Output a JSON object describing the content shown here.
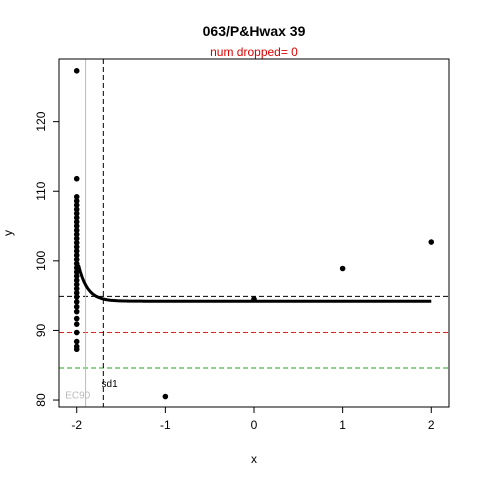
{
  "chart_data": {
    "type": "scatter",
    "title": "063/P&Hwax 39",
    "subtitle_prefix": "num dropped=",
    "subtitle_value": 0,
    "xlabel": "x",
    "ylabel": "y",
    "xlim": [
      -2.2,
      2.2
    ],
    "ylim": [
      79,
      129
    ],
    "xticks": [
      -2,
      -1,
      0,
      1,
      2
    ],
    "yticks": [
      80,
      90,
      100,
      110,
      120
    ],
    "points": [
      {
        "x": -2,
        "y": 127.3
      },
      {
        "x": -2,
        "y": 111.8
      },
      {
        "x": -2,
        "y": 109.2
      },
      {
        "x": -2,
        "y": 108.6
      },
      {
        "x": -2,
        "y": 108.0
      },
      {
        "x": -2,
        "y": 107.4
      },
      {
        "x": -2,
        "y": 106.8
      },
      {
        "x": -2,
        "y": 106.2
      },
      {
        "x": -2,
        "y": 105.6
      },
      {
        "x": -2,
        "y": 105.0
      },
      {
        "x": -2,
        "y": 104.4
      },
      {
        "x": -2,
        "y": 103.8
      },
      {
        "x": -2,
        "y": 103.2
      },
      {
        "x": -2,
        "y": 102.6
      },
      {
        "x": -2,
        "y": 102.0
      },
      {
        "x": -2,
        "y": 101.4
      },
      {
        "x": -2,
        "y": 100.8
      },
      {
        "x": -2,
        "y": 100.2
      },
      {
        "x": -2,
        "y": 99.6
      },
      {
        "x": -2,
        "y": 99.0
      },
      {
        "x": -2,
        "y": 98.4
      },
      {
        "x": -2,
        "y": 97.8
      },
      {
        "x": -2,
        "y": 97.2
      },
      {
        "x": -2,
        "y": 96.6
      },
      {
        "x": -2,
        "y": 96.0
      },
      {
        "x": -2,
        "y": 95.4
      },
      {
        "x": -2,
        "y": 94.8
      },
      {
        "x": -2,
        "y": 94.1
      },
      {
        "x": -2,
        "y": 93.4
      },
      {
        "x": -2,
        "y": 92.7
      },
      {
        "x": -2,
        "y": 91.7
      },
      {
        "x": -2,
        "y": 90.9
      },
      {
        "x": -2,
        "y": 89.7
      },
      {
        "x": -2,
        "y": 88.4
      },
      {
        "x": -2,
        "y": 87.7
      },
      {
        "x": -2,
        "y": 87.3
      },
      {
        "x": -1,
        "y": 80.5
      },
      {
        "x": 0,
        "y": 94.5
      },
      {
        "x": 1,
        "y": 98.9
      },
      {
        "x": 2,
        "y": 102.7
      }
    ],
    "fit_curve": {
      "description_free": true,
      "baseline": 94.2,
      "amplitude": 5.2,
      "decay": 10.0,
      "x_start": -1.98,
      "x_end": 2.0,
      "color": "#000000"
    },
    "hlines": [
      {
        "y": 94.9,
        "color": "#000000",
        "style": "dashed"
      },
      {
        "y": 89.7,
        "color": "#dd2222",
        "style": "dashed"
      },
      {
        "y": 84.6,
        "color": "#22aa22",
        "style": "dashed"
      }
    ],
    "vlines": [
      {
        "x": -1.7,
        "color": "#000000",
        "style": "dashed"
      },
      {
        "x": -1.9,
        "color": "#bbbbbb",
        "style": "solid"
      }
    ],
    "annotations": [
      {
        "text": "sd1",
        "x": -1.72,
        "y": 81.9,
        "color": "#000000"
      },
      {
        "text": "EC90",
        "x": -2.13,
        "y": 80.2,
        "color": "#bbbbbb"
      }
    ],
    "colors": {
      "points": "#000000",
      "subtitle": "#dd0000"
    }
  }
}
